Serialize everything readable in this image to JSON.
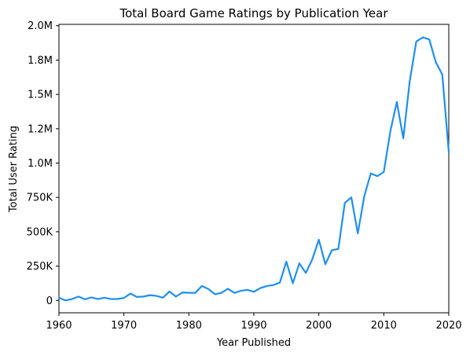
{
  "chart_data": {
    "type": "line",
    "title": "Total Board Game Ratings by Publication Year",
    "xlabel": "Year Published",
    "ylabel": "Total User Rating",
    "xlim": [
      1960,
      2020
    ],
    "ylim": [
      -90000,
      2010000
    ],
    "x_ticks": [
      1960,
      1970,
      1980,
      1990,
      2000,
      2010,
      2020
    ],
    "x_tick_labels": [
      "1960",
      "1970",
      "1980",
      "1990",
      "2000",
      "2010",
      "2020"
    ],
    "y_ticks": [
      0,
      250000,
      500000,
      750000,
      1000000,
      1250000,
      1500000,
      1750000,
      2000000
    ],
    "y_tick_labels": [
      "0",
      "250K",
      "500K",
      "750K",
      "1.0M",
      "1.2M",
      "1.5M",
      "1.8M",
      "2.0M"
    ],
    "grid": false,
    "legend": "none",
    "series": [
      {
        "color": "#1f8fef",
        "x": [
          1960,
          1961,
          1962,
          1963,
          1964,
          1965,
          1966,
          1967,
          1968,
          1969,
          1970,
          1971,
          1972,
          1973,
          1974,
          1975,
          1976,
          1977,
          1978,
          1979,
          1980,
          1981,
          1982,
          1983,
          1984,
          1985,
          1986,
          1987,
          1988,
          1989,
          1990,
          1991,
          1992,
          1993,
          1994,
          1995,
          1996,
          1997,
          1998,
          1999,
          2000,
          2001,
          2002,
          2003,
          2004,
          2005,
          2006,
          2007,
          2008,
          2009,
          2010,
          2011,
          2012,
          2013,
          2014,
          2015,
          2016,
          2017,
          2018,
          2019,
          2020
        ],
        "values": [
          20000,
          0,
          10000,
          28000,
          8000,
          22000,
          10000,
          20000,
          10000,
          10000,
          18000,
          50000,
          25000,
          28000,
          38000,
          33000,
          20000,
          65000,
          28000,
          58000,
          55000,
          55000,
          105000,
          83000,
          45000,
          55000,
          85000,
          55000,
          70000,
          77000,
          63000,
          90000,
          105000,
          112000,
          130000,
          282000,
          125000,
          270000,
          200000,
          300000,
          442000,
          263000,
          365000,
          375000,
          710000,
          750000,
          488000,
          760000,
          925000,
          905000,
          935000,
          1230000,
          1445000,
          1180000,
          1600000,
          1885000,
          1915000,
          1900000,
          1735000,
          1645000,
          1080000
        ]
      }
    ]
  }
}
